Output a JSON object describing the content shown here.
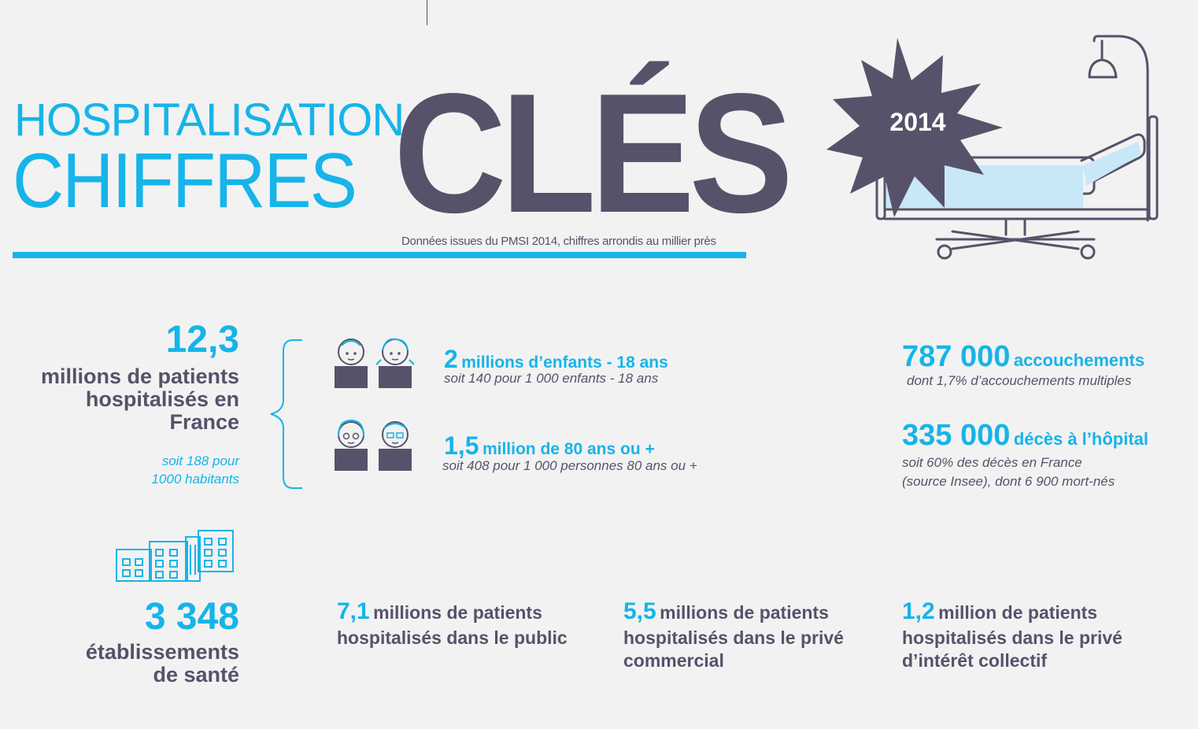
{
  "header": {
    "title_line1": "HOSPITALISATION",
    "title_line2": "CHIFFRES",
    "title_big": "CLÉS",
    "source": "Données issues du PMSI 2014, chiffres arrondis au millier près",
    "year": "2014"
  },
  "patients": {
    "number": "12,3",
    "label_l1": "millions de patients",
    "label_l2": "hospitalisés en",
    "label_l3": "France",
    "sub_l1": "soit 188 pour",
    "sub_l2": "1000 habitants"
  },
  "children": {
    "number": "2",
    "text": "millions  d’enfants - 18 ans",
    "sub": "soit 140 pour 1 000 enfants - 18 ans"
  },
  "elderly": {
    "number": "1,5",
    "text": "million de 80 ans ou +",
    "sub": "soit 408 pour 1 000 personnes 80 ans ou +"
  },
  "births": {
    "number": "787 000",
    "text": "accouchements",
    "sub": "dont 1,7% d’accouchements multiples"
  },
  "deaths": {
    "number": "335 000",
    "text": "décès à l’hôpital",
    "sub_l1": "soit 60% des décès en France",
    "sub_l2": "(source Insee), dont 6 900 mort-nés"
  },
  "establishments": {
    "number": "3 348",
    "label_l1": "établissements",
    "label_l2": "de santé"
  },
  "public": {
    "number": "7,1",
    "text_l1": "millions de patients",
    "text_l2": "hospitalisés dans le public"
  },
  "private_commercial": {
    "number": "5,5",
    "text_l1": "millions de patients",
    "text_l2": "hospitalisés dans le privé",
    "text_l3": "commercial"
  },
  "private_collective": {
    "number": "1,2",
    "text_l1": "million de patients",
    "text_l2": "hospitalisés dans le privé",
    "text_l3": "d’intérêt collectif"
  },
  "colors": {
    "accent": "#16b4e9",
    "dark": "#57526a",
    "background": "#f2f2f2"
  },
  "icons": [
    "hospital-bed-icon",
    "starburst-icon",
    "child-boy-icon",
    "child-girl-icon",
    "elderly-woman-icon",
    "elderly-man-icon",
    "buildings-icon",
    "brace-icon"
  ]
}
